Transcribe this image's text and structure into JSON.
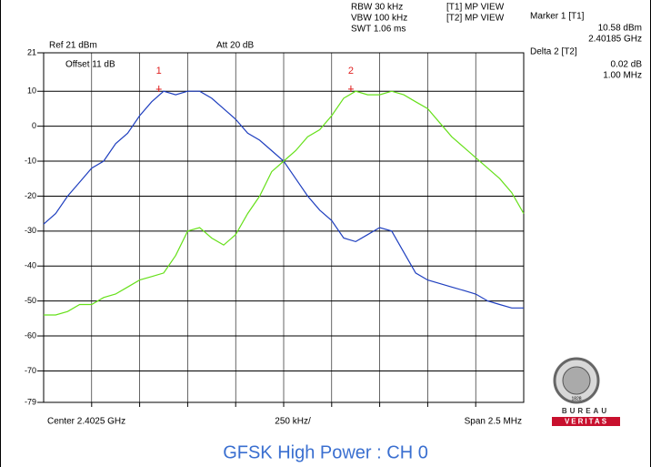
{
  "chart_data": {
    "type": "line",
    "title": "GFSK High Power : CH 0",
    "info": {
      "ref": "Ref 21 dBm",
      "att": "Att  20 dB",
      "offset": "Offset 11 dB",
      "rbw": "RBW 30 kHz",
      "vbw": "VBW 100 kHz",
      "swt": "SWT 1.06 ms",
      "t1": "[T1] MP VIEW",
      "t2": "[T2] MP VIEW",
      "marker1": "Marker 1 [T1]",
      "marker1_level": "10.58 dBm",
      "marker1_freq": "2.40185 GHz",
      "delta2": "Delta 2 [T2]",
      "delta2_level": "0.02 dB",
      "delta2_freq": "1.00 MHz",
      "center": "Center 2.4025 GHz",
      "div": "250 kHz/",
      "span": "Span 2.5 MHz"
    },
    "logo": {
      "top": "BUREAU",
      "bottom": "VERITAS",
      "year": "1828"
    },
    "xlim": [
      2.40125,
      2.40375
    ],
    "ylim": [
      -79,
      21
    ],
    "yticks": [
      21,
      10,
      0,
      -10,
      -20,
      -30,
      -40,
      -50,
      -60,
      -70,
      -79
    ],
    "grid": true,
    "series": [
      {
        "name": "T1",
        "color": "#1f3fbf",
        "values": [
          -28,
          -25,
          -20,
          -16,
          -12,
          -10,
          -5,
          -2,
          3,
          7,
          10,
          9,
          10,
          10,
          8,
          5,
          2,
          -2,
          -4,
          -7,
          -10,
          -15,
          -20,
          -24,
          -27,
          -32,
          -33,
          -31,
          -29,
          -30,
          -36,
          -42,
          -44,
          -45,
          -46,
          -47,
          -48,
          -50,
          -51,
          -52,
          -52
        ]
      },
      {
        "name": "T2",
        "color": "#66e01a",
        "values": [
          -54,
          -54,
          -53,
          -51,
          -51,
          -49,
          -48,
          -46,
          -44,
          -43,
          -42,
          -37,
          -30,
          -29,
          -32,
          -34,
          -31,
          -25,
          -20,
          -13,
          -10,
          -7,
          -3,
          -1,
          3,
          8,
          10,
          9,
          9,
          10,
          9,
          7,
          5,
          1,
          -3,
          -6,
          -9,
          -12,
          -15,
          -19,
          -25
        ]
      }
    ],
    "markers": [
      {
        "label": "1",
        "x": 2.40185,
        "y": 10.58
      },
      {
        "label": "2",
        "x": 2.40285,
        "y": 10.6
      }
    ]
  }
}
